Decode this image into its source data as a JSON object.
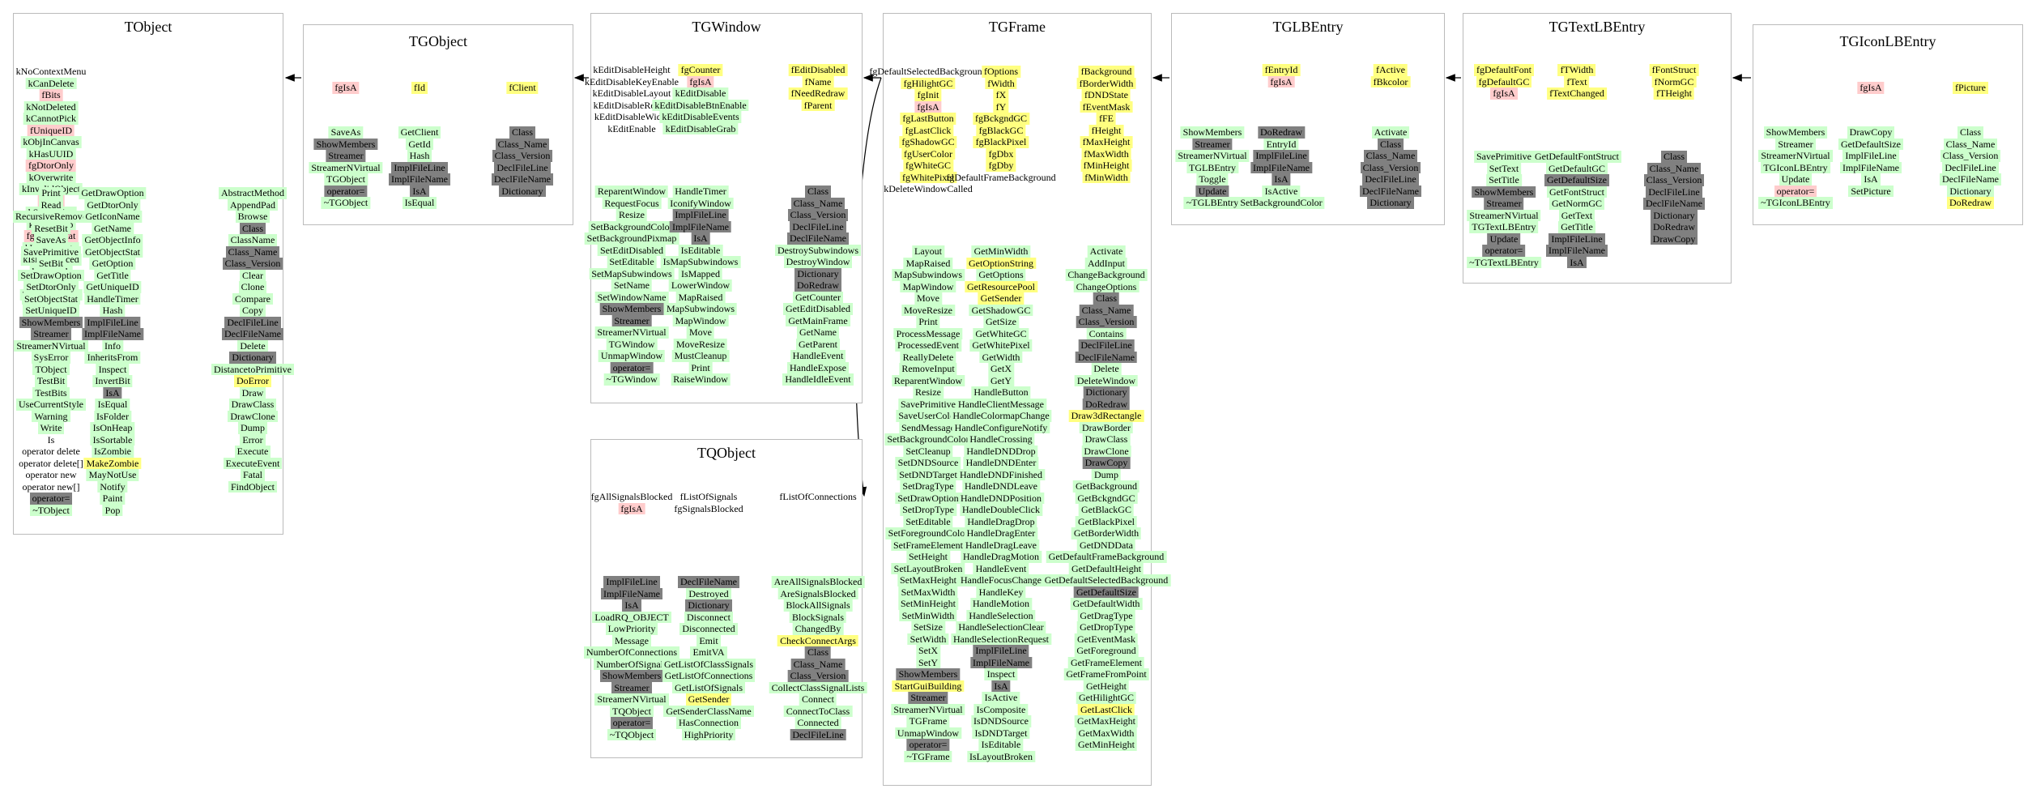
{
  "classes": [
    {
      "name": "TObject",
      "fields": [
        [
          "kNoContextMenu|",
          "kCanDelete|g",
          "fBits|r",
          "kNotDeleted|g",
          "kCannotPick|g",
          "fUniqueID|r",
          "kObjInCanvas|g",
          "kHasUUID|g",
          "fgDtorOnly|r",
          "kOverwrite|g",
          "kInvalidObject|g",
          "fgIsA|r",
          "kSingleKey|g",
          "kIsOnHeap|g",
          "fgObjectStat|r",
          "kWriteDelete|g",
          "kIsReferenced|g",
          "kBitMask|g",
          "kZombie|g",
          "kMustCleanup|g"
        ],
        []
      ],
      "methods": [
        [
          "Print|g",
          "Read|g",
          "RecursiveRemove|g",
          "ResetBit|g",
          "SaveAs|g",
          "SavePrimitive|g",
          "SetBit|g",
          "SetDrawOption|g",
          "SetDtorOnly|g",
          "SetObjectStat|g",
          "SetUniqueID|g",
          "ShowMembers|d",
          "Streamer|d",
          "StreamerNVirtual|g",
          "SysError|g",
          "TObject|g",
          "TestBit|g",
          "TestBits|g",
          "UseCurrentStyle|g",
          "Warning|g",
          "Write|g",
          "Is|",
          "operator delete|",
          "operator delete[]|",
          "operator new|",
          "operator new[]|",
          "operator=|d",
          "~TObject|g"
        ],
        [
          "GetDrawOption|g",
          "GetDtorOnly|g",
          "GetIconName|g",
          "GetName|g",
          "GetObjectInfo|g",
          "GetObjectStat|g",
          "GetOption|g",
          "GetTitle|g",
          "GetUniqueID|g",
          "HandleTimer|g",
          "Hash|g",
          "ImplFileLine|d",
          "ImplFileName|d",
          "Info|g",
          "InheritsFrom|g",
          "Inspect|g",
          "InvertBit|g",
          "IsA|d",
          "IsEqual|g",
          "IsFolder|g",
          "IsOnHeap|g",
          "IsSortable|g",
          "IsZombie|g",
          "MakeZombie|y",
          "MayNotUse|g",
          "Notify|g",
          "Paint|g",
          "Pop|g"
        ],
        [
          "AbstractMethod|g",
          "AppendPad|g",
          "Browse|g",
          "Class|d",
          "ClassName|g",
          "Class_Name|d",
          "Class_Version|d",
          "Clear|g",
          "Clone|g",
          "Compare|g",
          "Copy|g",
          "DeclFileLine|d",
          "DeclFileName|d",
          "Delete|g",
          "Dictionary|d",
          "DistancetoPrimitive|g",
          "DoError|y",
          "Draw|g",
          "DrawClass|g",
          "DrawClone|g",
          "Dump|g",
          "Error|g",
          "Execute|g",
          "ExecuteEvent|g",
          "Fatal|g",
          "FindObject|g"
        ]
      ]
    },
    {
      "name": "TGObject",
      "fields": [
        [
          "fgIsA|r"
        ],
        [
          "fId|y"
        ],
        [
          "fClient|y"
        ]
      ],
      "methods": [
        [
          "SaveAs|g",
          "ShowMembers|d",
          "Streamer|d",
          "StreamerNVirtual|g",
          "TGObject|g",
          "operator=|d",
          "~TGObject|g"
        ],
        [
          "GetClient|g",
          "GetId|g",
          "Hash|g",
          "ImplFileLine|d",
          "ImplFileName|d",
          "IsA|d",
          "IsEqual|g"
        ],
        [
          "Class|d",
          "Class_Name|d",
          "Class_Version|d",
          "DeclFileLine|d",
          "DeclFileName|d",
          "Dictionary|d"
        ]
      ]
    },
    {
      "name": "TGWindow",
      "fields": [
        [
          "kEditDisableHeight|",
          "kEditDisableKeyEnable|",
          "kEditDisableLayout|",
          "kEditDisableResize|",
          "kEditDisableWidth|",
          "kEditEnable|"
        ],
        [
          "fgCounter|y",
          "fgIsA|r",
          "kEditDisable|g",
          "kEditDisableBtnEnable|g",
          "kEditDisableEvents|g",
          "kEditDisableGrab|g"
        ],
        [
          "fEditDisabled|y",
          "fName|y",
          "fNeedRedraw|y",
          "fParent|y"
        ]
      ],
      "methods": [
        [
          "ReparentWindow|g",
          "RequestFocus|g",
          "Resize|g",
          "SetBackgroundColor|g",
          "SetBackgroundPixmap|g",
          "SetEditDisabled|g",
          "SetEditable|g",
          "SetMapSubwindows|g",
          "SetName|g",
          "SetWindowName|g",
          "ShowMembers|d",
          "Streamer|d",
          "StreamerNVirtual|g",
          "TGWindow|g",
          "UnmapWindow|g",
          "operator=|d",
          "~TGWindow|g"
        ],
        [
          "HandleTimer|g",
          "IconifyWindow|g",
          "ImplFileLine|d",
          "ImplFileName|d",
          "IsA|d",
          "IsEditable|g",
          "IsMapSubwindows|g",
          "IsMapped|g",
          "LowerWindow|g",
          "MapRaised|g",
          "MapSubwindows|g",
          "MapWindow|g",
          "Move|g",
          "MoveResize|g",
          "MustCleanup|g",
          "Print|g",
          "RaiseWindow|g"
        ],
        [
          "Class|d",
          "Class_Name|d",
          "Class_Version|d",
          "DeclFileLine|d",
          "DeclFileName|d",
          "DestroySubwindows|g",
          "DestroyWindow|g",
          "Dictionary|d",
          "DoRedraw|d",
          "GetCounter|g",
          "GetEditDisabled|g",
          "GetMainFrame|g",
          "GetName|g",
          "GetParent|g",
          "HandleEvent|g",
          "HandleExpose|g",
          "HandleIdleEvent|g"
        ]
      ]
    },
    {
      "name": "TQObject",
      "fields": [
        [
          "fgAllSignalsBlocked|",
          "fgIsA|r"
        ],
        [
          "fListOfSignals|",
          "fgSignalsBlocked|"
        ],
        [
          "fListOfConnections|"
        ]
      ],
      "methods": [
        [
          "ImplFileLine|d",
          "ImplFileName|d",
          "IsA|d",
          "LoadRQ_OBJECT|g",
          "LowPriority|g",
          "Message|g",
          "NumberOfConnections|g",
          "NumberOfSignals|g",
          "ShowMembers|d",
          "Streamer|d",
          "StreamerNVirtual|g",
          "TQObject|g",
          "operator=|d",
          "~TQObject|g"
        ],
        [
          "DeclFileName|d",
          "Destroyed|g",
          "Dictionary|d",
          "Disconnect|g",
          "Disconnected|g",
          "Emit|g",
          "EmitVA|g",
          "GetListOfClassSignals|g",
          "GetListOfConnections|g",
          "GetListOfSignals|g",
          "GetSender|y",
          "GetSenderClassName|g",
          "HasConnection|g",
          "HighPriority|g"
        ],
        [
          "AreAllSignalsBlocked|g",
          "AreSignalsBlocked|g",
          "BlockAllSignals|g",
          "BlockSignals|g",
          "ChangedBy|g",
          "CheckConnectArgs|y",
          "Class|d",
          "Class_Name|d",
          "Class_Version|d",
          "CollectClassSignalLists|g",
          "Connect|g",
          "ConnectToClass|g",
          "Connected|g",
          "DeclFileLine|d"
        ]
      ]
    },
    {
      "name": "TGFrame",
      "fields": [
        [
          "fgDefaultSelectedBackground|",
          "fgHilightGC|y",
          "fgInit|y",
          "fgIsA|r",
          "fgLastButton|y",
          "fgLastClick|y",
          "fgShadowGC|y",
          "fgUserColor|y",
          "fgWhiteGC|y",
          "fgWhitePixel|y",
          "kDeleteWindowCalled|"
        ],
        [
          "fOptions|y",
          "fWidth|y",
          "fX|y",
          "fY|y",
          "fgBckgndGC|y",
          "fgBlackGC|y",
          "fgBlackPixel|y",
          "fgDbx|y",
          "fgDby|y",
          "fgDefaultFrameBackground|"
        ],
        [
          "fBackground|y",
          "fBorderWidth|y",
          "fDNDState|y",
          "fEventMask|y",
          "fFE|y",
          "fHeight|y",
          "fMaxHeight|y",
          "fMaxWidth|y",
          "fMinHeight|y",
          "fMinWidth|y"
        ]
      ],
      "methods": [
        [
          "Layout|g",
          "MapRaised|g",
          "MapSubwindows|g",
          "MapWindow|g",
          "Move|g",
          "MoveResize|g",
          "Print|g",
          "ProcessMessage|g",
          "ProcessedEvent|g",
          "ReallyDelete|g",
          "RemoveInput|g",
          "ReparentWindow|g",
          "Resize|g",
          "SavePrimitive|g",
          "SaveUserColor|g",
          "SendMessage|g",
          "SetBackgroundColor|g",
          "SetCleanup|g",
          "SetDNDSource|g",
          "SetDNDTarget|g",
          "SetDragType|g",
          "SetDrawOption|g",
          "SetDropType|g",
          "SetEditable|g",
          "SetForegroundColor|g",
          "SetFrameElement|g",
          "SetHeight|g",
          "SetLayoutBroken|g",
          "SetMaxHeight|g",
          "SetMaxWidth|g",
          "SetMinHeight|g",
          "SetMinWidth|g",
          "SetSize|g",
          "SetWidth|g",
          "SetX|g",
          "SetY|g",
          "ShowMembers|d",
          "StartGuiBuilding|y",
          "Streamer|d",
          "StreamerNVirtual|g",
          "TGFrame|g",
          "UnmapWindow|g",
          "operator=|d",
          "~TGFrame|g"
        ],
        [
          "GetMinWidth|g",
          "GetOptionString|y",
          "GetOptions|g",
          "GetResourcePool|y",
          "GetSender|y",
          "GetShadowGC|g",
          "GetSize|g",
          "GetWhiteGC|g",
          "GetWhitePixel|g",
          "GetWidth|g",
          "GetX|g",
          "GetY|g",
          "HandleButton|g",
          "HandleClientMessage|g",
          "HandleColormapChange|g",
          "HandleConfigureNotify|g",
          "HandleCrossing|g",
          "HandleDNDDrop|g",
          "HandleDNDEnter|g",
          "HandleDNDFinished|g",
          "HandleDNDLeave|g",
          "HandleDNDPosition|g",
          "HandleDoubleClick|g",
          "HandleDragDrop|g",
          "HandleDragEnter|g",
          "HandleDragLeave|g",
          "HandleDragMotion|g",
          "HandleEvent|g",
          "HandleFocusChange|g",
          "HandleKey|g",
          "HandleMotion|g",
          "HandleSelection|g",
          "HandleSelectionClear|g",
          "HandleSelectionRequest|g",
          "ImplFileLine|d",
          "ImplFileName|d",
          "Inspect|g",
          "IsA|d",
          "IsActive|g",
          "IsComposite|g",
          "IsDNDSource|g",
          "IsDNDTarget|g",
          "IsEditable|g",
          "IsLayoutBroken|g"
        ],
        [
          "Activate|g",
          "AddInput|g",
          "ChangeBackground|g",
          "ChangeOptions|g",
          "Class|d",
          "Class_Name|d",
          "Class_Version|d",
          "Contains|g",
          "DeclFileLine|d",
          "DeclFileName|d",
          "Delete|g",
          "DeleteWindow|g",
          "Dictionary|d",
          "DoRedraw|d",
          "Draw3dRectangle|y",
          "DrawBorder|g",
          "DrawClass|g",
          "DrawClone|g",
          "DrawCopy|d",
          "Dump|g",
          "GetBackground|g",
          "GetBckgndGC|g",
          "GetBlackGC|g",
          "GetBlackPixel|g",
          "GetBorderWidth|g",
          "GetDNDData|g",
          "GetDefaultFrameBackground|g",
          "GetDefaultHeight|g",
          "GetDefaultSelectedBackground|g",
          "GetDefaultSize|d",
          "GetDefaultWidth|g",
          "GetDragType|g",
          "GetDropType|g",
          "GetEventMask|g",
          "GetForeground|g",
          "GetFrameElement|g",
          "GetFrameFromPoint|g",
          "GetHeight|g",
          "GetHilightGC|g",
          "GetLastClick|y",
          "GetMaxHeight|g",
          "GetMaxWidth|g",
          "GetMinHeight|g"
        ]
      ]
    },
    {
      "name": "TGLBEntry",
      "fields": [
        [],
        [
          "fEntryId|y",
          "fgIsA|r"
        ],
        [
          "fActive|y",
          "fBkcolor|y"
        ]
      ],
      "methods": [
        [
          "ShowMembers|g",
          "Streamer|d",
          "StreamerNVirtual|g",
          "TGLBEntry|g",
          "Toggle|g",
          "Update|d",
          "~TGLBEntry|g"
        ],
        [
          "DoRedraw|d",
          "EntryId|g",
          "ImplFileLine|d",
          "ImplFileName|d",
          "IsA|d",
          "IsActive|g",
          "SetBackgroundColor|g"
        ],
        [
          "Activate|g",
          "Class|d",
          "Class_Name|d",
          "Class_Version|d",
          "DeclFileLine|d",
          "DeclFileName|d",
          "Dictionary|d"
        ]
      ]
    },
    {
      "name": "TGTextLBEntry",
      "fields": [
        [
          "fgDefaultFont|y",
          "fgDefaultGC|y",
          "fgIsA|r"
        ],
        [
          "fTWidth|y",
          "fText|y",
          "fTextChanged|y"
        ],
        [
          "fFontStruct|y",
          "fNormGC|y",
          "fTHeight|y"
        ]
      ],
      "methods": [
        [
          "SavePrimitive|g",
          "SetText|g",
          "SetTitle|g",
          "ShowMembers|d",
          "Streamer|d",
          "StreamerNVirtual|g",
          "TGTextLBEntry|g",
          "Update|d",
          "operator=|d",
          "~TGTextLBEntry|g"
        ],
        [
          "GetDefaultFontStruct|g",
          "GetDefaultGC|g",
          "GetDefaultSize|d",
          "GetFontStruct|g",
          "GetNormGC|g",
          "GetText|g",
          "GetTitle|g",
          "ImplFileLine|d",
          "ImplFileName|d",
          "IsA|d"
        ],
        [
          "Class|d",
          "Class_Name|d",
          "Class_Version|d",
          "DeclFileLine|d",
          "DeclFileName|d",
          "Dictionary|d",
          "DoRedraw|d",
          "DrawCopy|d"
        ]
      ]
    },
    {
      "name": "TGIconLBEntry",
      "fields": [
        [],
        [
          "fgIsA|r"
        ],
        [
          "fPicture|y"
        ]
      ],
      "methods": [
        [
          "ShowMembers|g",
          "Streamer|g",
          "StreamerNVirtual|g",
          "TGIconLBEntry|g",
          "Update|g",
          "operator=|r",
          "~TGIconLBEntry|g"
        ],
        [
          "DrawCopy|g",
          "GetDefaultSize|g",
          "ImplFileLine|g",
          "ImplFileName|g",
          "IsA|g",
          "SetPicture|g"
        ],
        [
          "Class|g",
          "Class_Name|g",
          "Class_Version|g",
          "DeclFileLine|g",
          "DeclFileName|g",
          "Dictionary|g",
          "DoRedraw|y"
        ]
      ]
    }
  ]
}
